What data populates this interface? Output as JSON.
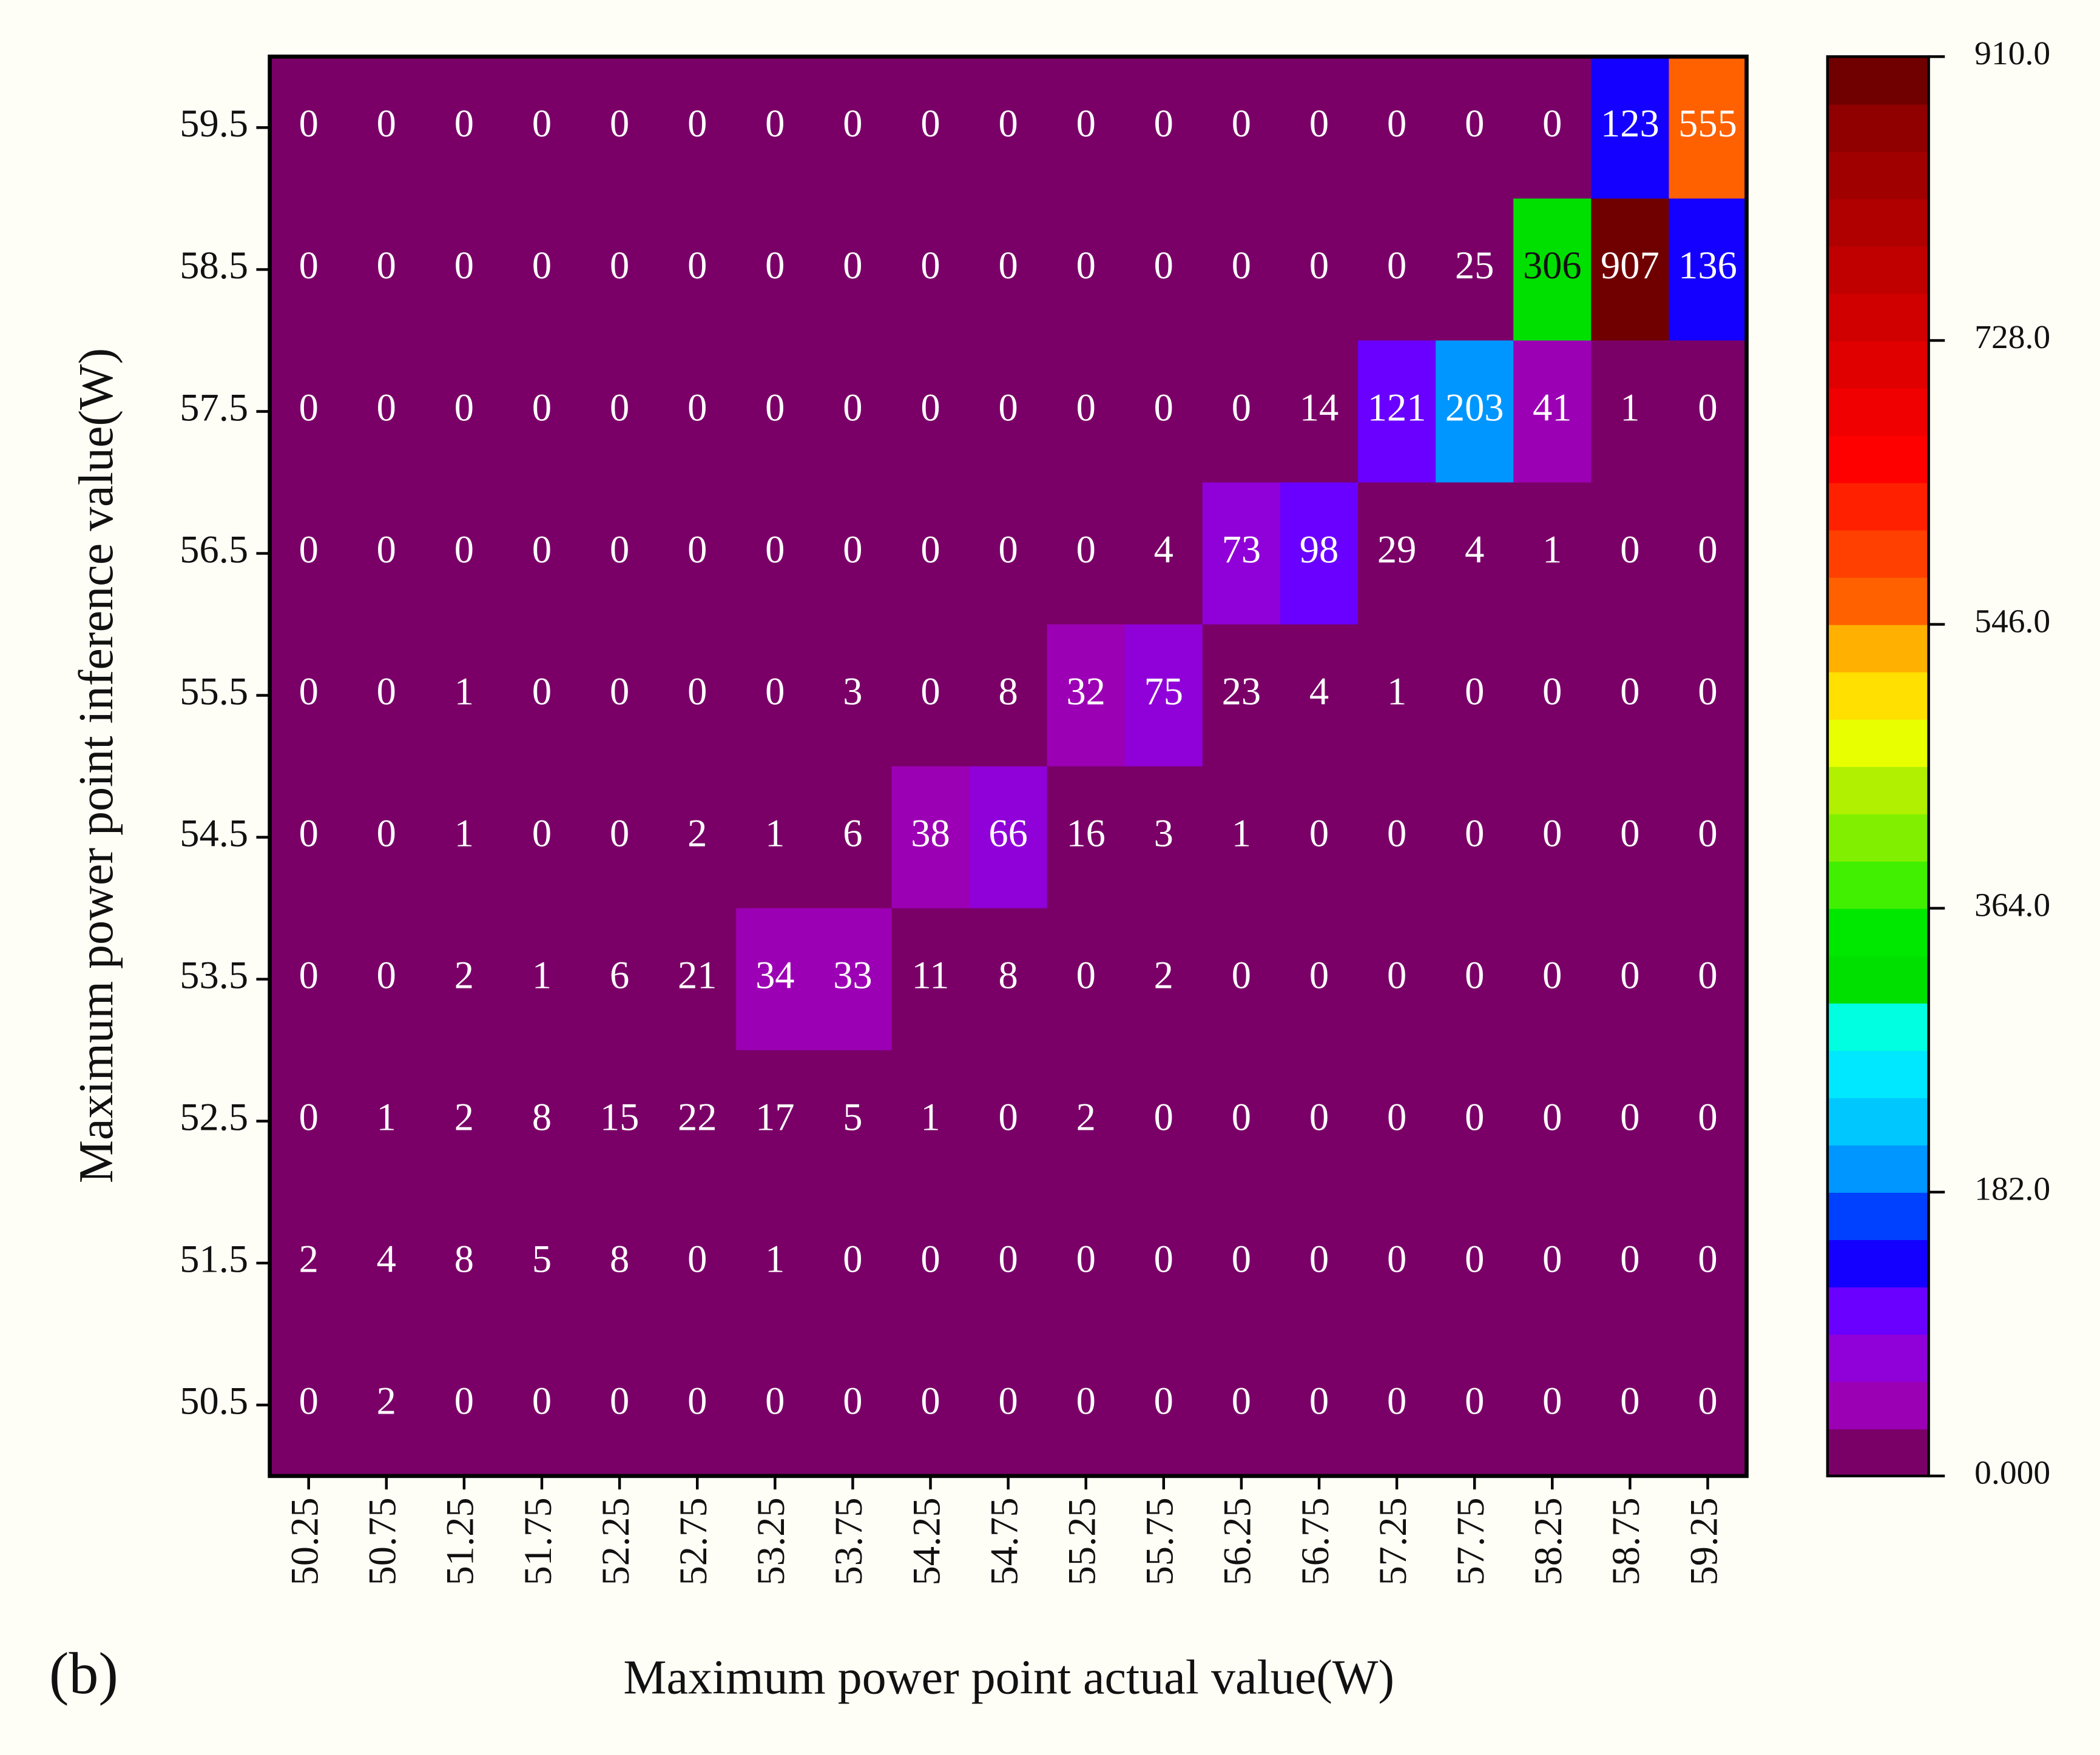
{
  "chart_data": {
    "type": "heatmap",
    "panel_label": "(b)",
    "x_label": "Maximum power point actual value(W)",
    "y_label": "Maximum power point inference value(W)",
    "x_categories": [
      "50.25",
      "50.75",
      "51.25",
      "51.75",
      "52.25",
      "52.75",
      "53.25",
      "53.75",
      "54.25",
      "54.75",
      "55.25",
      "55.75",
      "56.25",
      "56.75",
      "57.25",
      "57.75",
      "58.25",
      "58.75",
      "59.25"
    ],
    "y_categories": [
      "59.5",
      "58.5",
      "57.5",
      "56.5",
      "55.5",
      "54.5",
      "53.5",
      "52.5",
      "51.5",
      "50.5"
    ],
    "values": [
      [
        0,
        0,
        0,
        0,
        0,
        0,
        0,
        0,
        0,
        0,
        0,
        0,
        0,
        0,
        0,
        0,
        0,
        123,
        555
      ],
      [
        0,
        0,
        0,
        0,
        0,
        0,
        0,
        0,
        0,
        0,
        0,
        0,
        0,
        0,
        0,
        25,
        306,
        907,
        136
      ],
      [
        0,
        0,
        0,
        0,
        0,
        0,
        0,
        0,
        0,
        0,
        0,
        0,
        0,
        14,
        121,
        203,
        41,
        1,
        0
      ],
      [
        0,
        0,
        0,
        0,
        0,
        0,
        0,
        0,
        0,
        0,
        0,
        4,
        73,
        98,
        29,
        4,
        1,
        0,
        0
      ],
      [
        0,
        0,
        1,
        0,
        0,
        0,
        0,
        3,
        0,
        8,
        32,
        75,
        23,
        4,
        1,
        0,
        0,
        0,
        0
      ],
      [
        0,
        0,
        1,
        0,
        0,
        2,
        1,
        6,
        38,
        66,
        16,
        3,
        1,
        0,
        0,
        0,
        0,
        0,
        0
      ],
      [
        0,
        0,
        2,
        1,
        6,
        21,
        34,
        33,
        11,
        8,
        0,
        2,
        0,
        0,
        0,
        0,
        0,
        0,
        0
      ],
      [
        0,
        1,
        2,
        8,
        15,
        22,
        17,
        5,
        1,
        0,
        2,
        0,
        0,
        0,
        0,
        0,
        0,
        0,
        0
      ],
      [
        2,
        4,
        8,
        5,
        8,
        0,
        1,
        0,
        0,
        0,
        0,
        0,
        0,
        0,
        0,
        0,
        0,
        0,
        0
      ],
      [
        0,
        2,
        0,
        0,
        0,
        0,
        0,
        0,
        0,
        0,
        0,
        0,
        0,
        0,
        0,
        0,
        0,
        0,
        0
      ]
    ],
    "zlim": [
      0,
      910
    ],
    "zticks": [
      {
        "value": 0,
        "label": "0.000"
      },
      {
        "value": 182,
        "label": "182.0"
      },
      {
        "value": 364,
        "label": "364.0"
      },
      {
        "value": 546,
        "label": "546.0"
      },
      {
        "value": 728,
        "label": "728.0"
      },
      {
        "value": 910,
        "label": "910.0"
      }
    ],
    "colors": [
      "#7a0068",
      "#9c00b4",
      "#9000d8",
      "#6a00ff",
      "#1400ff",
      "#0040ff",
      "#0096ff",
      "#00c8ff",
      "#00e8ff",
      "#00ffe0",
      "#00e000",
      "#00e800",
      "#40f000",
      "#80f000",
      "#b0f000",
      "#e8ff00",
      "#ffe000",
      "#ffb000",
      "#ff6000",
      "#ff4000",
      "#ff2000",
      "#ff0000",
      "#f00000",
      "#e00000",
      "#d00000",
      "#c00000",
      "#b00000",
      "#a00000",
      "#900000",
      "#700000"
    ]
  }
}
